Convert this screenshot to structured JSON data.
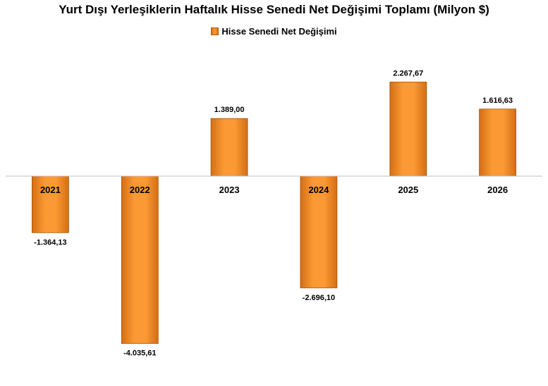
{
  "chart_data": {
    "type": "bar",
    "title": "Yurt Dışı Yerleşiklerin Haftalık Hisse Senedi Net Değişimi Toplamı (Milyon $)",
    "categories": [
      "2021",
      "2022",
      "2023",
      "2024",
      "2025",
      "2026"
    ],
    "series": [
      {
        "name": "Hisse Senedi Net Değişimi",
        "values": [
          -1364.13,
          -4035.61,
          1389.0,
          -2696.1,
          2267.67,
          1616.63
        ],
        "labels": [
          "-1.364,13",
          "-4.035,61",
          "1.389,00",
          "-2.696,10",
          "2.267,67",
          "1.616,63"
        ]
      }
    ],
    "ylim": [
      -4700,
      3000
    ],
    "grid": false,
    "legend_position": "top",
    "colors": {
      "bar_light": "#fb9a34",
      "bar_mid": "#f38a24",
      "bar_dark": "#d46e14",
      "bar_edge": "#a85509",
      "axis": "#bfbfbf"
    }
  }
}
